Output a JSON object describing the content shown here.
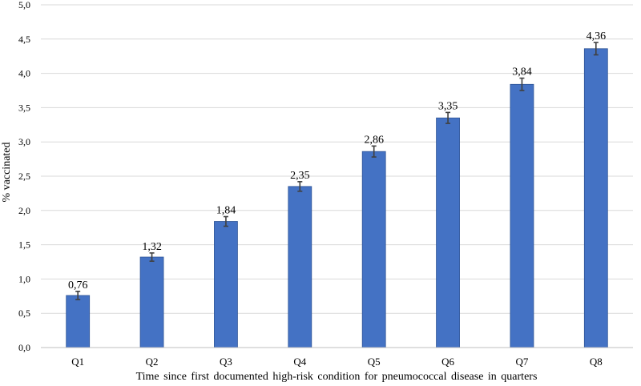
{
  "chart_data": {
    "type": "bar",
    "title": "",
    "xlabel": "Time since first documented high-risk condition for pneumococcal disease in quarters",
    "ylabel": "% vaccinated",
    "categories": [
      "Q1",
      "Q2",
      "Q3",
      "Q4",
      "Q5",
      "Q6",
      "Q7",
      "Q8"
    ],
    "values": [
      0.76,
      1.32,
      1.84,
      2.35,
      2.86,
      3.35,
      3.84,
      4.36
    ],
    "value_labels": [
      "0,76",
      "1,32",
      "1,84",
      "2,35",
      "2,86",
      "3,35",
      "3,84",
      "4,36"
    ],
    "error": [
      0.06,
      0.06,
      0.07,
      0.07,
      0.08,
      0.08,
      0.09,
      0.09
    ],
    "ylim": [
      0,
      5.0
    ],
    "yticks": [
      0,
      0.5,
      1.0,
      1.5,
      2.0,
      2.5,
      3.0,
      3.5,
      4.0,
      4.5,
      5.0
    ],
    "ytick_labels": [
      "0,0",
      "0,5",
      "1,0",
      "1,5",
      "2,0",
      "2,5",
      "3,0",
      "3,5",
      "4,0",
      "4,5",
      "5,0"
    ],
    "grid": true,
    "legend": "none",
    "colors": {
      "bar": "#4472C4",
      "bar_edge": "#2F5597",
      "error_bar": "#404040",
      "grid": "#D9D9D9",
      "axis": "#BFBFBF"
    }
  }
}
